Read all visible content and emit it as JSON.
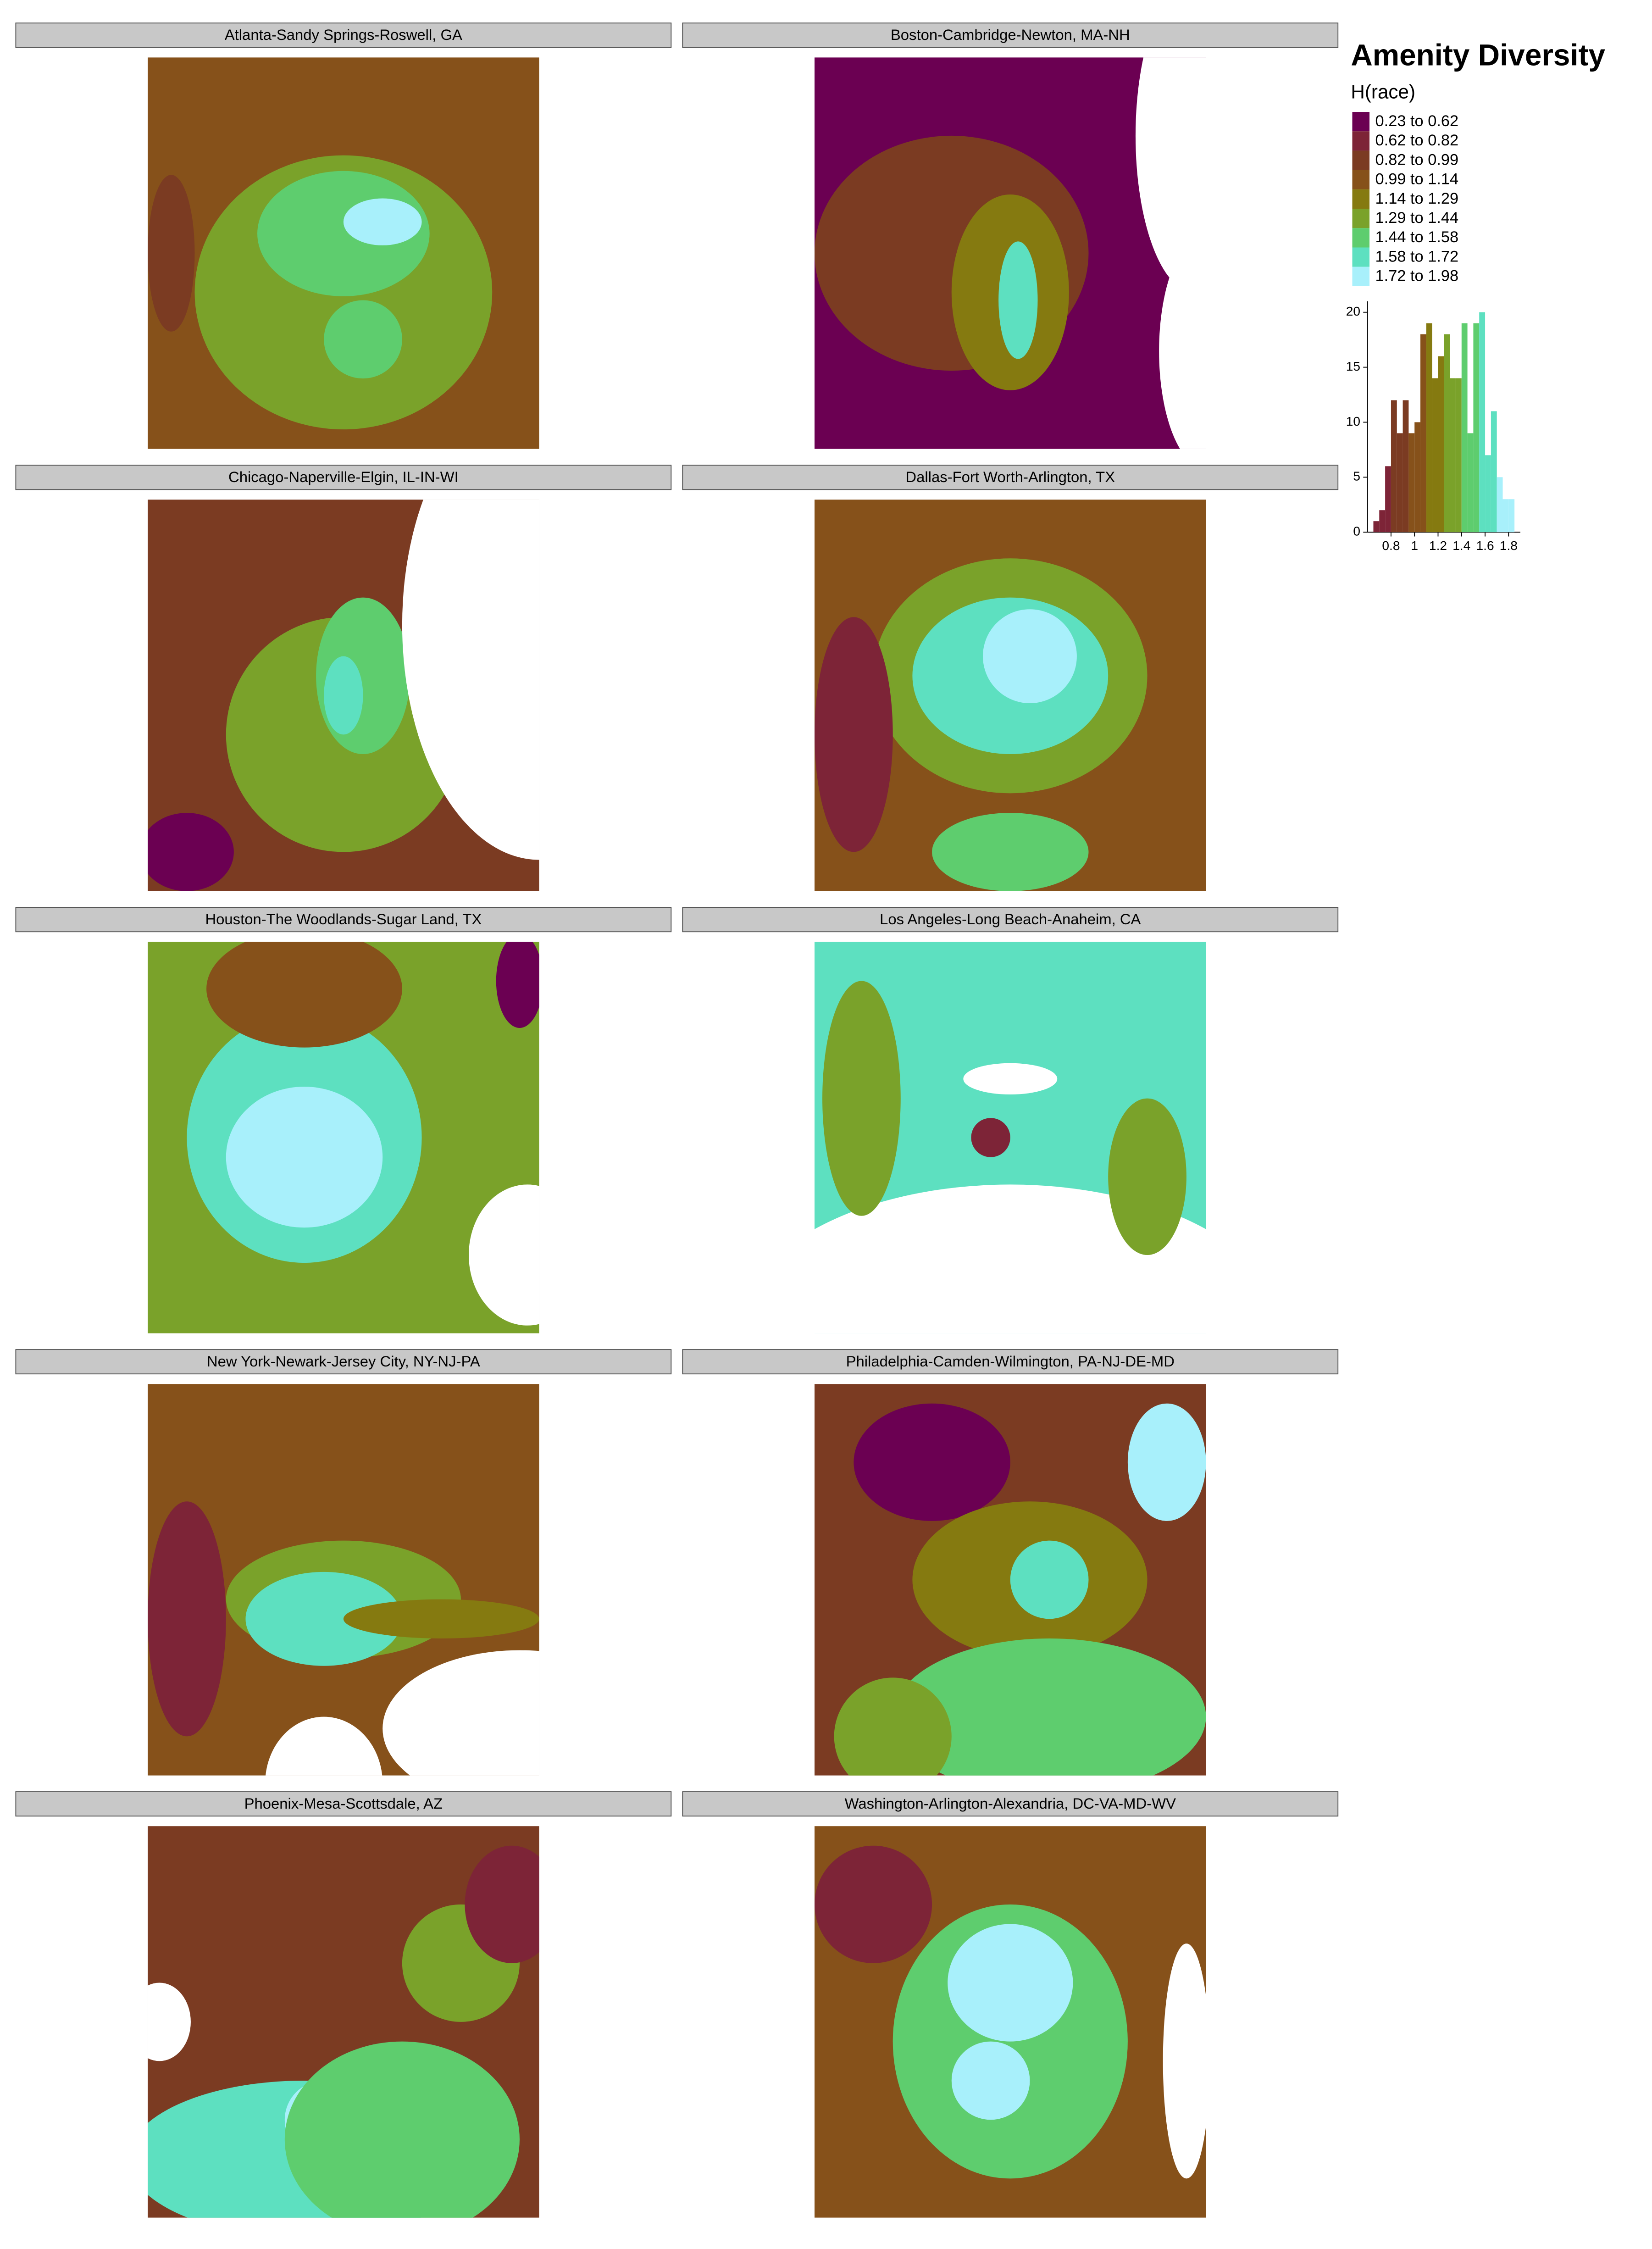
{
  "title": "Amenity Diversity",
  "legend": {
    "title": "H(race)",
    "labels": [
      "0.23 to 0.62",
      "0.62 to 0.82",
      "0.82 to 0.99",
      "0.99 to 1.14",
      "1.14 to 1.29",
      "1.29 to 1.44",
      "1.44 to 1.58",
      "1.58 to 1.72",
      "1.72 to 1.98"
    ],
    "colors": [
      "#6b0052",
      "#7d2437",
      "#7b3b22",
      "#86511a",
      "#857a10",
      "#7aa22a",
      "#5ecd6e",
      "#5de0c0",
      "#a8f0fb"
    ]
  },
  "panels": [
    "Atlanta-Sandy Springs-Roswell, GA",
    "Boston-Cambridge-Newton, MA-NH",
    "Chicago-Naperville-Elgin, IL-IN-WI",
    "Dallas-Fort Worth-Arlington, TX",
    "Houston-The Woodlands-Sugar Land, TX",
    "Los Angeles-Long Beach-Anaheim, CA",
    "New York-Newark-Jersey City, NY-NJ-PA",
    "Philadelphia-Camden-Wilmington, PA-NJ-DE-MD",
    "Phoenix-Mesa-Scottsdale, AZ",
    "Washington-Arlington-Alexandria, DC-VA-MD-WV"
  ],
  "chart_data": {
    "type": "histogram",
    "bins": [
      0.65,
      0.7,
      0.75,
      0.8,
      0.85,
      0.9,
      0.95,
      1.0,
      1.05,
      1.1,
      1.15,
      1.2,
      1.25,
      1.3,
      1.35,
      1.4,
      1.45,
      1.5,
      1.55,
      1.6,
      1.65,
      1.7,
      1.75,
      1.8,
      1.85
    ],
    "values": [
      1,
      2,
      6,
      12,
      9,
      12,
      9,
      10,
      18,
      19,
      14,
      16,
      18,
      14,
      14,
      19,
      9,
      19,
      20,
      7,
      11,
      5,
      3,
      3
    ],
    "colors": [
      "#7d2437",
      "#7d2437",
      "#7d2437",
      "#7b3b22",
      "#7b3b22",
      "#7b3b22",
      "#86511a",
      "#86511a",
      "#86511a",
      "#857a10",
      "#857a10",
      "#857a10",
      "#7aa22a",
      "#7aa22a",
      "#7aa22a",
      "#5ecd6e",
      "#5ecd6e",
      "#5ecd6e",
      "#5de0c0",
      "#5de0c0",
      "#5de0c0",
      "#a8f0fb",
      "#a8f0fb",
      "#a8f0fb"
    ],
    "xlim": [
      0.6,
      1.9
    ],
    "ylim": [
      0,
      21
    ],
    "xticks": [
      0.8,
      1,
      1.2,
      1.4,
      1.6,
      1.8
    ],
    "yticks": [
      0,
      5,
      10,
      15,
      20
    ]
  }
}
